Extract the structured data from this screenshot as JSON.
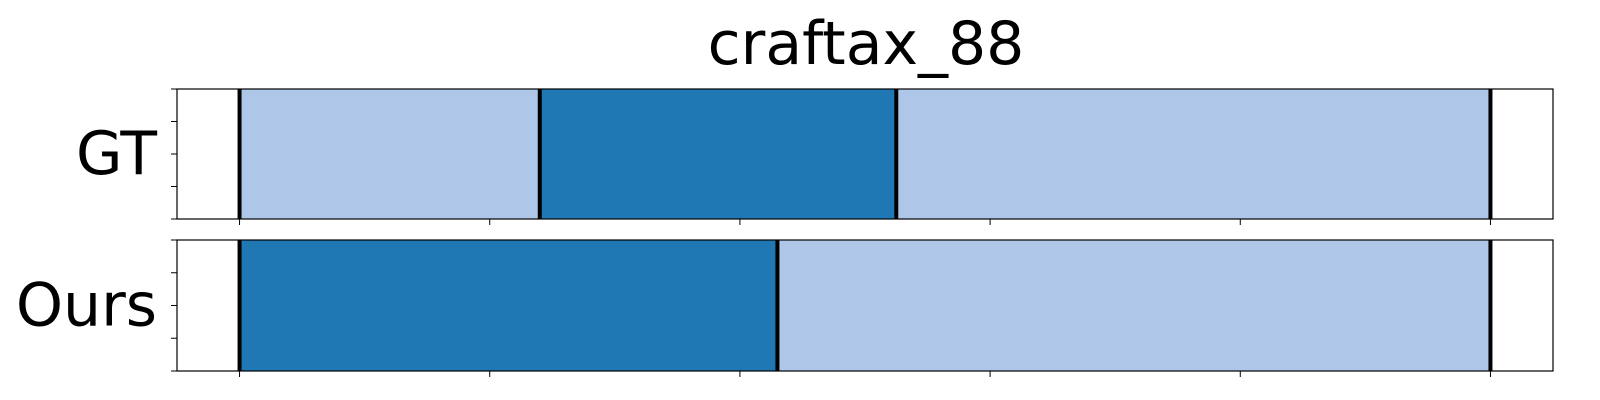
{
  "chart_data": {
    "type": "segment-timeline",
    "title": "craftax_88",
    "xlim": [
      0,
      1.1
    ],
    "x_ticks": [
      0.05,
      0.25,
      0.45,
      0.65,
      0.85,
      1.05
    ],
    "rows": [
      {
        "label": "GT",
        "segments": [
          {
            "start": 0.05,
            "end": 0.29,
            "category": "light"
          },
          {
            "start": 0.29,
            "end": 0.575,
            "category": "dark"
          },
          {
            "start": 0.575,
            "end": 1.05,
            "category": "light"
          }
        ]
      },
      {
        "label": "Ours",
        "segments": [
          {
            "start": 0.05,
            "end": 0.48,
            "category": "dark"
          },
          {
            "start": 0.48,
            "end": 1.05,
            "category": "light"
          }
        ]
      }
    ],
    "colors": {
      "light": "#aec7e8",
      "dark": "#1f77b4",
      "boundary": "#000000"
    },
    "grid": false,
    "legend": "none"
  }
}
